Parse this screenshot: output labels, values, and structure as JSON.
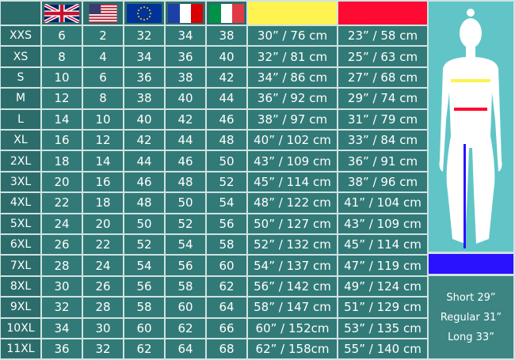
{
  "header": {
    "flags": [
      {
        "name": "uk-flag-icon",
        "label": "UK"
      },
      {
        "name": "us-flag-icon",
        "label": "US"
      },
      {
        "name": "eu-flag-icon",
        "label": "EU"
      },
      {
        "name": "france-flag-icon",
        "label": "FR"
      },
      {
        "name": "italy-flag-icon",
        "label": "IT"
      }
    ],
    "bust_color": "#fff352",
    "waist_color": "#ff0a33",
    "inseam_color": "#2a12ff"
  },
  "rows": [
    [
      "XXS",
      "6",
      "2",
      "32",
      "34",
      "38",
      "30” / 76 cm",
      "23” / 58 cm"
    ],
    [
      "XS",
      "8",
      "4",
      "34",
      "36",
      "40",
      "32” / 81 cm",
      "25” / 63 cm"
    ],
    [
      "S",
      "10",
      "6",
      "36",
      "38",
      "42",
      "34” / 86 cm",
      "27” / 68 cm"
    ],
    [
      "M",
      "12",
      "8",
      "38",
      "40",
      "44",
      "36” / 92 cm",
      "29” / 74 cm"
    ],
    [
      "L",
      "14",
      "10",
      "40",
      "42",
      "46",
      "38” / 97 cm",
      "31” / 79 cm"
    ],
    [
      "XL",
      "16",
      "12",
      "42",
      "44",
      "48",
      "40” / 102 cm",
      "33” / 84 cm"
    ],
    [
      "2XL",
      "18",
      "14",
      "44",
      "46",
      "50",
      "43” / 109 cm",
      "36” / 91 cm"
    ],
    [
      "3XL",
      "20",
      "16",
      "46",
      "48",
      "52",
      "45” / 114 cm",
      "38” / 96 cm"
    ],
    [
      "4XL",
      "22",
      "18",
      "48",
      "50",
      "54",
      "48” / 122 cm",
      "41” / 104 cm"
    ],
    [
      "5XL",
      "24",
      "20",
      "50",
      "52",
      "56",
      "50” / 127 cm",
      "43” / 109 cm"
    ],
    [
      "6XL",
      "26",
      "22",
      "52",
      "54",
      "58",
      "52” / 132 cm",
      "45” / 114 cm"
    ],
    [
      "7XL",
      "28",
      "24",
      "54",
      "56",
      "60",
      "54” / 137 cm",
      "47” / 119 cm"
    ],
    [
      "8XL",
      "30",
      "26",
      "56",
      "58",
      "62",
      "56” / 142 cm",
      "49” / 124 cm"
    ],
    [
      "9XL",
      "32",
      "28",
      "58",
      "60",
      "64",
      "58” / 147 cm",
      "51” / 129 cm"
    ],
    [
      "10XL",
      "34",
      "30",
      "60",
      "62",
      "66",
      "60” / 152cm",
      "53” / 135 cm"
    ],
    [
      "11XL",
      "36",
      "32",
      "62",
      "64",
      "68",
      "62” / 158cm",
      "55” / 140 cm"
    ]
  ],
  "inseam": {
    "lengths": [
      "Short 29”",
      "Regular 31”",
      "Long 33”"
    ]
  }
}
